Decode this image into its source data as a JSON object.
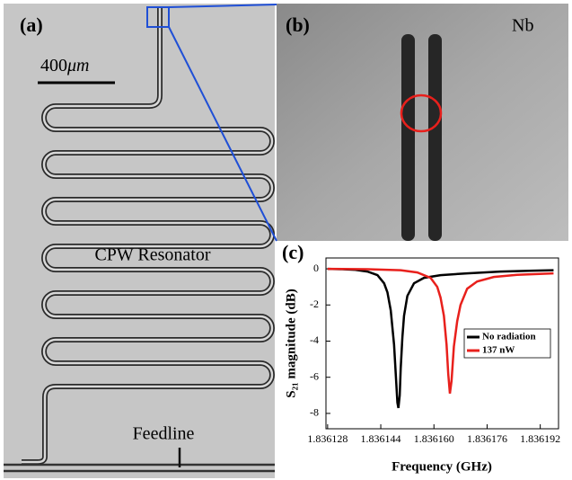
{
  "panel_a": {
    "label": "(a)",
    "scale_value": "400",
    "scale_unit": "μm",
    "resonator_label": "CPW Resonator",
    "feedline_label": "Feedline"
  },
  "panel_b": {
    "label": "(b)",
    "material": "Nb"
  },
  "chart_data": {
    "type": "line",
    "panel_label": "(c)",
    "xlabel": "Frequency (GHz)",
    "ylabel": "S₂₁ magnitude (dB)",
    "xlim": [
      1.8361275,
      1.8361975
    ],
    "ylim": [
      -8.85,
      0.6
    ],
    "xticks": [
      1.836128,
      1.836144,
      {
        "value": 1.83616,
        "label": "1.836160"
      },
      1.836176,
      1.836192
    ],
    "yticks": [
      0,
      -2,
      -4,
      -6,
      -8
    ],
    "legend": "right",
    "series": [
      {
        "name": "No radiation",
        "color": "#000000",
        "x": [
          1.836128,
          1.836132,
          1.836136,
          1.83614,
          1.836143,
          1.836145,
          1.836146,
          1.836147,
          1.836148,
          1.8361485,
          1.836149,
          1.8361493,
          1.8361497,
          1.83615,
          1.8361505,
          1.836151,
          1.836152,
          1.836154,
          1.836157,
          1.836162,
          1.83617,
          1.83618,
          1.83619,
          1.836196
        ],
        "values": [
          0,
          -0.02,
          -0.05,
          -0.15,
          -0.35,
          -0.8,
          -1.3,
          -2.3,
          -4.2,
          -5.8,
          -7.4,
          -7.7,
          -7.0,
          -5.5,
          -3.8,
          -2.6,
          -1.5,
          -0.8,
          -0.5,
          -0.35,
          -0.25,
          -0.15,
          -0.1,
          -0.08
        ]
      },
      {
        "name": "137 nW",
        "color": "#e8201c",
        "x": [
          1.836128,
          1.83614,
          1.83615,
          1.836155,
          1.836159,
          1.836161,
          1.836162,
          1.836163,
          1.8361638,
          1.8361643,
          1.8361648,
          1.8361653,
          1.836166,
          1.836167,
          1.836168,
          1.83617,
          1.836173,
          1.836178,
          1.836185,
          1.836196
        ],
        "values": [
          0,
          -0.02,
          -0.08,
          -0.2,
          -0.5,
          -1.0,
          -1.6,
          -2.6,
          -4.2,
          -5.8,
          -6.9,
          -6.2,
          -4.3,
          -2.9,
          -2.0,
          -1.1,
          -0.7,
          -0.45,
          -0.33,
          -0.25
        ]
      }
    ]
  }
}
